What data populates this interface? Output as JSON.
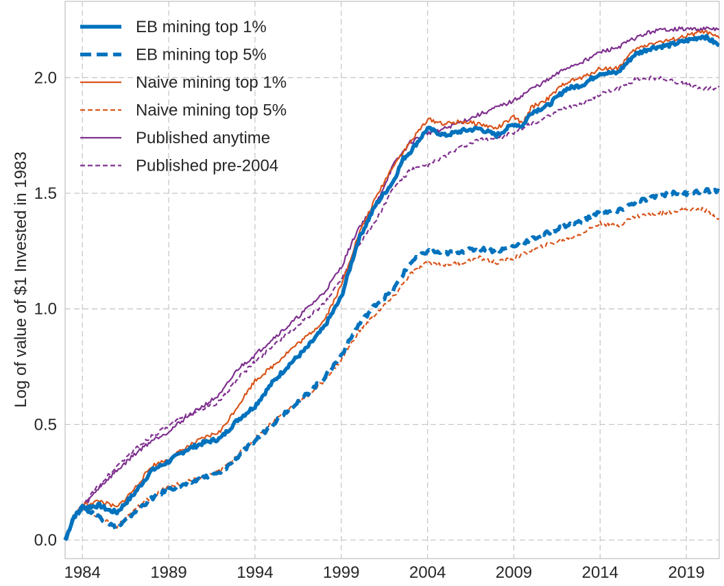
{
  "chart_data": {
    "type": "line",
    "title": "",
    "xlabel": "",
    "ylabel": "Log of value of $1 Invested in 1983",
    "xlim": [
      1983.0,
      2020.9
    ],
    "ylim": [
      -0.08,
      2.33
    ],
    "x_ticks": [
      1984,
      1989,
      1994,
      1999,
      2004,
      2009,
      2014,
      2019
    ],
    "x_tick_labels": [
      "1984",
      "1989",
      "1994",
      "1999",
      "2004",
      "2009",
      "2014",
      "2019"
    ],
    "y_ticks": [
      0.0,
      0.5,
      1.0,
      1.5,
      2.0
    ],
    "y_tick_labels": [
      "0.0",
      "0.5",
      "1.0",
      "1.5",
      "2.0"
    ],
    "grid": true,
    "legend_position": "top-left",
    "series": [
      {
        "name": "EB mining top 1%",
        "color": "#0072BD",
        "style": "solid",
        "weight": "thick",
        "points": [
          [
            1983.0,
            0.0
          ],
          [
            1983.5,
            0.1
          ],
          [
            1984.0,
            0.14
          ],
          [
            1985.0,
            0.15
          ],
          [
            1985.5,
            0.13
          ],
          [
            1986.0,
            0.12
          ],
          [
            1987.0,
            0.2
          ],
          [
            1988.0,
            0.3
          ],
          [
            1989.0,
            0.34
          ],
          [
            1990.0,
            0.39
          ],
          [
            1991.0,
            0.42
          ],
          [
            1992.0,
            0.44
          ],
          [
            1993.0,
            0.52
          ],
          [
            1994.0,
            0.58
          ],
          [
            1995.0,
            0.68
          ],
          [
            1996.0,
            0.76
          ],
          [
            1997.0,
            0.83
          ],
          [
            1998.0,
            0.92
          ],
          [
            1999.0,
            1.05
          ],
          [
            2000.0,
            1.3
          ],
          [
            2001.0,
            1.45
          ],
          [
            2002.0,
            1.55
          ],
          [
            2002.6,
            1.65
          ],
          [
            2003.0,
            1.68
          ],
          [
            2004.0,
            1.78
          ],
          [
            2005.0,
            1.75
          ],
          [
            2006.0,
            1.77
          ],
          [
            2007.0,
            1.78
          ],
          [
            2008.0,
            1.75
          ],
          [
            2009.0,
            1.8
          ],
          [
            2009.5,
            1.79
          ],
          [
            2010.0,
            1.85
          ],
          [
            2011.0,
            1.88
          ],
          [
            2012.0,
            1.95
          ],
          [
            2013.0,
            1.97
          ],
          [
            2014.0,
            2.02
          ],
          [
            2015.0,
            2.02
          ],
          [
            2016.0,
            2.1
          ],
          [
            2017.0,
            2.13
          ],
          [
            2018.0,
            2.14
          ],
          [
            2019.0,
            2.16
          ],
          [
            2020.0,
            2.18
          ],
          [
            2020.9,
            2.14
          ]
        ]
      },
      {
        "name": "EB mining top 5%",
        "color": "#0072BD",
        "style": "dashed",
        "weight": "thick",
        "points": [
          [
            1983.0,
            0.0
          ],
          [
            1983.5,
            0.1
          ],
          [
            1984.0,
            0.14
          ],
          [
            1985.0,
            0.1
          ],
          [
            1986.0,
            0.05
          ],
          [
            1987.0,
            0.12
          ],
          [
            1988.0,
            0.18
          ],
          [
            1989.0,
            0.22
          ],
          [
            1990.0,
            0.24
          ],
          [
            1991.0,
            0.27
          ],
          [
            1992.0,
            0.29
          ],
          [
            1993.0,
            0.36
          ],
          [
            1994.0,
            0.43
          ],
          [
            1995.0,
            0.5
          ],
          [
            1996.0,
            0.57
          ],
          [
            1997.0,
            0.63
          ],
          [
            1998.0,
            0.7
          ],
          [
            1999.0,
            0.8
          ],
          [
            2000.0,
            0.93
          ],
          [
            2001.0,
            1.02
          ],
          [
            2002.0,
            1.08
          ],
          [
            2003.0,
            1.2
          ],
          [
            2004.0,
            1.25
          ],
          [
            2005.0,
            1.24
          ],
          [
            2006.0,
            1.25
          ],
          [
            2007.0,
            1.26
          ],
          [
            2008.0,
            1.25
          ],
          [
            2009.0,
            1.27
          ],
          [
            2010.0,
            1.3
          ],
          [
            2011.0,
            1.33
          ],
          [
            2012.0,
            1.36
          ],
          [
            2013.0,
            1.38
          ],
          [
            2014.0,
            1.42
          ],
          [
            2015.0,
            1.42
          ],
          [
            2016.0,
            1.46
          ],
          [
            2017.0,
            1.48
          ],
          [
            2018.0,
            1.5
          ],
          [
            2019.0,
            1.5
          ],
          [
            2020.0,
            1.51
          ],
          [
            2020.9,
            1.51
          ]
        ]
      },
      {
        "name": "Naive mining top 1%",
        "color": "#D95319",
        "style": "solid",
        "weight": "thin",
        "points": [
          [
            1983.0,
            0.0
          ],
          [
            1983.5,
            0.1
          ],
          [
            1984.0,
            0.15
          ],
          [
            1985.0,
            0.17
          ],
          [
            1986.0,
            0.14
          ],
          [
            1987.0,
            0.22
          ],
          [
            1988.0,
            0.32
          ],
          [
            1989.0,
            0.35
          ],
          [
            1990.0,
            0.4
          ],
          [
            1991.0,
            0.44
          ],
          [
            1992.0,
            0.47
          ],
          [
            1993.0,
            0.58
          ],
          [
            1994.0,
            0.69
          ],
          [
            1995.0,
            0.75
          ],
          [
            1996.0,
            0.82
          ],
          [
            1997.0,
            0.88
          ],
          [
            1998.0,
            0.95
          ],
          [
            1999.0,
            1.1
          ],
          [
            2000.0,
            1.32
          ],
          [
            2001.0,
            1.48
          ],
          [
            2002.0,
            1.62
          ],
          [
            2003.0,
            1.72
          ],
          [
            2004.0,
            1.82
          ],
          [
            2005.0,
            1.8
          ],
          [
            2006.0,
            1.81
          ],
          [
            2007.0,
            1.8
          ],
          [
            2008.0,
            1.78
          ],
          [
            2009.0,
            1.83
          ],
          [
            2009.5,
            1.8
          ],
          [
            2010.0,
            1.87
          ],
          [
            2011.0,
            1.91
          ],
          [
            2012.0,
            1.98
          ],
          [
            2013.0,
            2.0
          ],
          [
            2014.0,
            2.04
          ],
          [
            2015.0,
            2.04
          ],
          [
            2016.0,
            2.12
          ],
          [
            2017.0,
            2.15
          ],
          [
            2018.0,
            2.16
          ],
          [
            2019.0,
            2.18
          ],
          [
            2020.0,
            2.2
          ],
          [
            2020.9,
            2.17
          ]
        ]
      },
      {
        "name": "Naive mining top 5%",
        "color": "#D95319",
        "style": "dashed",
        "weight": "thin",
        "points": [
          [
            1983.0,
            0.0
          ],
          [
            1983.5,
            0.1
          ],
          [
            1984.0,
            0.14
          ],
          [
            1985.0,
            0.1
          ],
          [
            1986.0,
            0.06
          ],
          [
            1987.0,
            0.13
          ],
          [
            1988.0,
            0.19
          ],
          [
            1989.0,
            0.23
          ],
          [
            1990.0,
            0.25
          ],
          [
            1991.0,
            0.27
          ],
          [
            1992.0,
            0.3
          ],
          [
            1993.0,
            0.37
          ],
          [
            1994.0,
            0.44
          ],
          [
            1995.0,
            0.51
          ],
          [
            1996.0,
            0.57
          ],
          [
            1997.0,
            0.62
          ],
          [
            1998.0,
            0.69
          ],
          [
            1999.0,
            0.78
          ],
          [
            2000.0,
            0.9
          ],
          [
            2001.0,
            0.98
          ],
          [
            2002.0,
            1.05
          ],
          [
            2003.0,
            1.15
          ],
          [
            2004.0,
            1.2
          ],
          [
            2005.0,
            1.19
          ],
          [
            2006.0,
            1.2
          ],
          [
            2007.0,
            1.22
          ],
          [
            2008.0,
            1.2
          ],
          [
            2009.0,
            1.22
          ],
          [
            2010.0,
            1.25
          ],
          [
            2011.0,
            1.28
          ],
          [
            2012.0,
            1.3
          ],
          [
            2013.0,
            1.33
          ],
          [
            2014.0,
            1.37
          ],
          [
            2015.0,
            1.36
          ],
          [
            2016.0,
            1.4
          ],
          [
            2017.0,
            1.41
          ],
          [
            2018.0,
            1.42
          ],
          [
            2019.0,
            1.43
          ],
          [
            2020.0,
            1.43
          ],
          [
            2020.9,
            1.39
          ]
        ]
      },
      {
        "name": "Published anytime",
        "color": "#7E2F8E",
        "style": "solid",
        "weight": "thin",
        "points": [
          [
            1983.0,
            0.0
          ],
          [
            1983.5,
            0.09
          ],
          [
            1984.0,
            0.14
          ],
          [
            1985.0,
            0.23
          ],
          [
            1986.0,
            0.3
          ],
          [
            1987.0,
            0.37
          ],
          [
            1988.0,
            0.43
          ],
          [
            1989.0,
            0.47
          ],
          [
            1990.0,
            0.53
          ],
          [
            1991.0,
            0.58
          ],
          [
            1992.0,
            0.63
          ],
          [
            1993.0,
            0.74
          ],
          [
            1994.0,
            0.8
          ],
          [
            1995.0,
            0.87
          ],
          [
            1996.0,
            0.93
          ],
          [
            1997.0,
            1.0
          ],
          [
            1998.0,
            1.07
          ],
          [
            1999.0,
            1.18
          ],
          [
            2000.0,
            1.35
          ],
          [
            2001.0,
            1.45
          ],
          [
            2002.0,
            1.62
          ],
          [
            2003.0,
            1.72
          ],
          [
            2004.0,
            1.76
          ],
          [
            2005.0,
            1.78
          ],
          [
            2006.0,
            1.81
          ],
          [
            2007.0,
            1.84
          ],
          [
            2008.0,
            1.87
          ],
          [
            2009.0,
            1.9
          ],
          [
            2010.0,
            1.95
          ],
          [
            2011.0,
            1.99
          ],
          [
            2012.0,
            2.04
          ],
          [
            2013.0,
            2.07
          ],
          [
            2014.0,
            2.11
          ],
          [
            2015.0,
            2.13
          ],
          [
            2016.0,
            2.17
          ],
          [
            2017.0,
            2.2
          ],
          [
            2018.0,
            2.21
          ],
          [
            2019.0,
            2.21
          ],
          [
            2020.0,
            2.21
          ],
          [
            2020.9,
            2.21
          ]
        ]
      },
      {
        "name": "Published pre-2004",
        "color": "#7E2F8E",
        "style": "dashed",
        "weight": "thin",
        "points": [
          [
            1983.0,
            0.0
          ],
          [
            1983.5,
            0.1
          ],
          [
            1984.0,
            0.15
          ],
          [
            1985.0,
            0.24
          ],
          [
            1986.0,
            0.32
          ],
          [
            1987.0,
            0.39
          ],
          [
            1988.0,
            0.45
          ],
          [
            1989.0,
            0.49
          ],
          [
            1990.0,
            0.54
          ],
          [
            1991.0,
            0.57
          ],
          [
            1992.0,
            0.6
          ],
          [
            1993.0,
            0.7
          ],
          [
            1994.0,
            0.77
          ],
          [
            1995.0,
            0.84
          ],
          [
            1996.0,
            0.9
          ],
          [
            1997.0,
            0.96
          ],
          [
            1998.0,
            1.02
          ],
          [
            1999.0,
            1.13
          ],
          [
            2000.0,
            1.28
          ],
          [
            2001.0,
            1.38
          ],
          [
            2002.0,
            1.52
          ],
          [
            2003.0,
            1.6
          ],
          [
            2004.0,
            1.62
          ],
          [
            2005.0,
            1.66
          ],
          [
            2006.0,
            1.7
          ],
          [
            2007.0,
            1.73
          ],
          [
            2008.0,
            1.74
          ],
          [
            2009.0,
            1.76
          ],
          [
            2010.0,
            1.8
          ],
          [
            2011.0,
            1.83
          ],
          [
            2012.0,
            1.87
          ],
          [
            2013.0,
            1.89
          ],
          [
            2014.0,
            1.93
          ],
          [
            2015.0,
            1.95
          ],
          [
            2016.0,
            1.99
          ],
          [
            2017.0,
            2.0
          ],
          [
            2018.0,
            1.99
          ],
          [
            2019.0,
            1.97
          ],
          [
            2020.0,
            1.95
          ],
          [
            2020.9,
            1.96
          ]
        ]
      }
    ]
  }
}
